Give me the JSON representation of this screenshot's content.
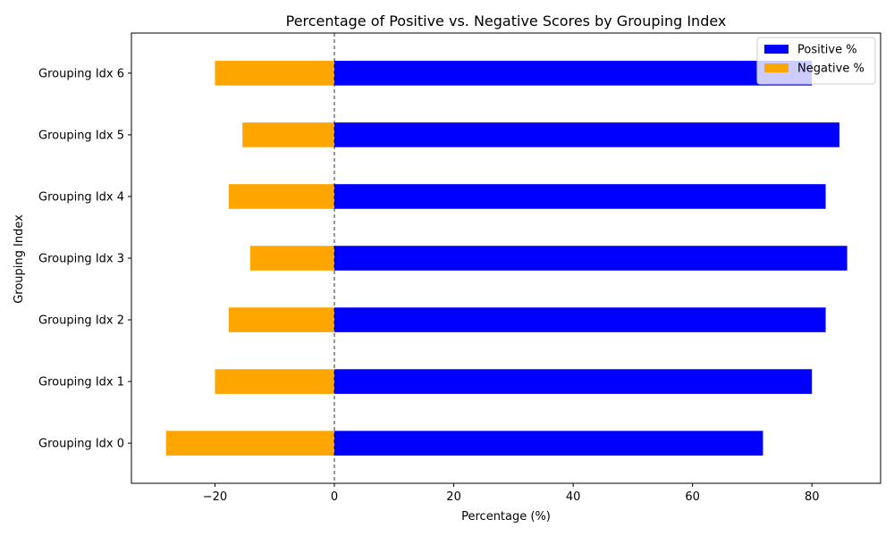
{
  "chart_data": {
    "type": "bar",
    "orientation": "horizontal",
    "title": "Percentage of Positive vs. Negative Scores by Grouping Index",
    "xlabel": "Percentage (%)",
    "ylabel": "Grouping Index",
    "categories": [
      "Grouping Idx 0",
      "Grouping Idx 1",
      "Grouping Idx 2",
      "Grouping Idx 3",
      "Grouping Idx 4",
      "Grouping Idx 5",
      "Grouping Idx 6"
    ],
    "series": [
      {
        "name": "Positive %",
        "color": "#0000ff",
        "values": [
          71.8,
          80.0,
          82.3,
          85.9,
          82.3,
          84.6,
          80.0
        ]
      },
      {
        "name": "Negative %",
        "color": "#ffa500",
        "values": [
          -28.2,
          -20.0,
          -17.7,
          -14.1,
          -17.7,
          -15.4,
          -20.0
        ]
      }
    ],
    "xlim": [
      -34,
      91.5
    ],
    "xticks": [
      -20,
      0,
      20,
      40,
      60,
      80
    ],
    "xtick_labels": [
      "−20",
      "0",
      "20",
      "40",
      "60",
      "80"
    ],
    "zero_line": "dashed",
    "grid": false,
    "legend_position": "top-right"
  }
}
